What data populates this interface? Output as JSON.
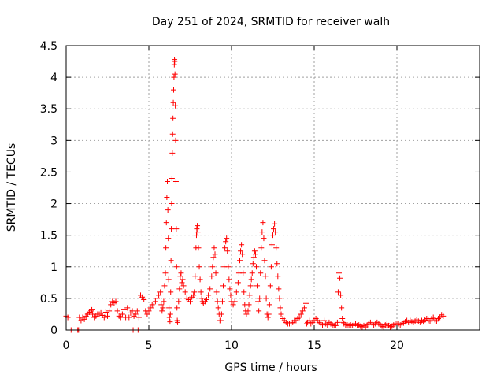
{
  "chart_data": {
    "type": "scatter",
    "title": "Day 251 of 2024, SRMTID for receiver walh",
    "xlabel": "GPS time / hours",
    "ylabel": "SRMTID / TECUs",
    "xlim": [
      0,
      25
    ],
    "ylim": [
      0,
      4.5
    ],
    "x_ticks": [
      0,
      5,
      10,
      15,
      20
    ],
    "x_tick_labels": [
      "0",
      "5",
      "10",
      "15",
      "20"
    ],
    "y_ticks": [
      0,
      0.5,
      1,
      1.5,
      2,
      2.5,
      3,
      3.5,
      4,
      4.5
    ],
    "y_tick_labels": [
      "0",
      "0.5",
      "1",
      "1.5",
      "2",
      "2.5",
      "3",
      "3.5",
      "4",
      "4.5"
    ],
    "grid": true,
    "marker": "+",
    "series": [
      {
        "name": "SRMTID",
        "color": "#ff0000",
        "points": [
          [
            0.0,
            0.22
          ],
          [
            0.1,
            0.2
          ],
          [
            0.3,
            0.0
          ],
          [
            0.7,
            0.0
          ],
          [
            0.75,
            0.0
          ],
          [
            0.8,
            0.2
          ],
          [
            0.9,
            0.15
          ],
          [
            1.0,
            0.2
          ],
          [
            1.1,
            0.17
          ],
          [
            1.2,
            0.22
          ],
          [
            1.3,
            0.25
          ],
          [
            1.4,
            0.28
          ],
          [
            1.5,
            0.3
          ],
          [
            1.55,
            0.32
          ],
          [
            1.6,
            0.25
          ],
          [
            1.7,
            0.2
          ],
          [
            1.8,
            0.22
          ],
          [
            1.9,
            0.25
          ],
          [
            2.0,
            0.25
          ],
          [
            2.1,
            0.27
          ],
          [
            2.2,
            0.23
          ],
          [
            2.3,
            0.2
          ],
          [
            2.4,
            0.28
          ],
          [
            2.5,
            0.22
          ],
          [
            2.6,
            0.3
          ],
          [
            2.7,
            0.4
          ],
          [
            2.8,
            0.45
          ],
          [
            2.9,
            0.43
          ],
          [
            3.0,
            0.45
          ],
          [
            3.1,
            0.3
          ],
          [
            3.2,
            0.22
          ],
          [
            3.3,
            0.2
          ],
          [
            3.4,
            0.25
          ],
          [
            3.5,
            0.32
          ],
          [
            3.6,
            0.2
          ],
          [
            3.7,
            0.35
          ],
          [
            3.8,
            0.2
          ],
          [
            3.9,
            0.27
          ],
          [
            4.0,
            0.3
          ],
          [
            4.05,
            0.0
          ],
          [
            4.1,
            0.22
          ],
          [
            4.2,
            0.25
          ],
          [
            4.3,
            0.3
          ],
          [
            4.35,
            0.0
          ],
          [
            4.4,
            0.2
          ],
          [
            4.5,
            0.55
          ],
          [
            4.6,
            0.52
          ],
          [
            4.7,
            0.48
          ],
          [
            4.8,
            0.3
          ],
          [
            4.9,
            0.25
          ],
          [
            5.0,
            0.3
          ],
          [
            5.1,
            0.35
          ],
          [
            5.2,
            0.4
          ],
          [
            5.3,
            0.38
          ],
          [
            5.4,
            0.45
          ],
          [
            5.5,
            0.5
          ],
          [
            5.6,
            0.55
          ],
          [
            5.7,
            0.6
          ],
          [
            5.75,
            0.4
          ],
          [
            5.8,
            0.3
          ],
          [
            5.85,
            0.35
          ],
          [
            5.9,
            0.45
          ],
          [
            5.95,
            0.7
          ],
          [
            6.0,
            0.9
          ],
          [
            6.03,
            1.3
          ],
          [
            6.06,
            1.7
          ],
          [
            6.09,
            2.1
          ],
          [
            6.12,
            2.35
          ],
          [
            6.15,
            1.9
          ],
          [
            6.18,
            1.45
          ],
          [
            6.2,
            0.8
          ],
          [
            6.22,
            0.35
          ],
          [
            6.25,
            0.2
          ],
          [
            6.28,
            0.13
          ],
          [
            6.3,
            0.25
          ],
          [
            6.32,
            0.6
          ],
          [
            6.34,
            1.1
          ],
          [
            6.36,
            1.6
          ],
          [
            6.38,
            2.0
          ],
          [
            6.4,
            2.4
          ],
          [
            6.42,
            2.8
          ],
          [
            6.44,
            3.1
          ],
          [
            6.46,
            3.35
          ],
          [
            6.48,
            3.6
          ],
          [
            6.5,
            3.8
          ],
          [
            6.52,
            4.0
          ],
          [
            6.54,
            4.2
          ],
          [
            6.55,
            4.28
          ],
          [
            6.56,
            4.25
          ],
          [
            6.58,
            4.05
          ],
          [
            6.6,
            3.55
          ],
          [
            6.62,
            3.0
          ],
          [
            6.64,
            2.35
          ],
          [
            6.66,
            1.6
          ],
          [
            6.68,
            1.0
          ],
          [
            6.7,
            0.35
          ],
          [
            6.72,
            0.15
          ],
          [
            6.74,
            0.12
          ],
          [
            6.8,
            0.45
          ],
          [
            6.85,
            0.65
          ],
          [
            6.9,
            0.85
          ],
          [
            6.95,
            0.9
          ],
          [
            7.0,
            0.75
          ],
          [
            7.05,
            0.8
          ],
          [
            7.1,
            0.7
          ],
          [
            7.2,
            0.6
          ],
          [
            7.3,
            0.5
          ],
          [
            7.4,
            0.48
          ],
          [
            7.5,
            0.45
          ],
          [
            7.6,
            0.52
          ],
          [
            7.7,
            0.55
          ],
          [
            7.75,
            0.6
          ],
          [
            7.8,
            0.85
          ],
          [
            7.85,
            1.3
          ],
          [
            7.88,
            1.5
          ],
          [
            7.9,
            1.6
          ],
          [
            7.93,
            1.65
          ],
          [
            7.96,
            1.55
          ],
          [
            8.0,
            1.3
          ],
          [
            8.05,
            1.0
          ],
          [
            8.1,
            0.8
          ],
          [
            8.15,
            0.6
          ],
          [
            8.2,
            0.5
          ],
          [
            8.25,
            0.45
          ],
          [
            8.3,
            0.42
          ],
          [
            8.4,
            0.45
          ],
          [
            8.5,
            0.48
          ],
          [
            8.6,
            0.55
          ],
          [
            8.7,
            0.65
          ],
          [
            8.8,
            0.85
          ],
          [
            8.85,
            1.0
          ],
          [
            8.9,
            1.15
          ],
          [
            8.95,
            1.3
          ],
          [
            9.0,
            1.2
          ],
          [
            9.05,
            0.9
          ],
          [
            9.1,
            0.6
          ],
          [
            9.15,
            0.45
          ],
          [
            9.2,
            0.35
          ],
          [
            9.25,
            0.25
          ],
          [
            9.3,
            0.15
          ],
          [
            9.35,
            0.15
          ],
          [
            9.4,
            0.25
          ],
          [
            9.45,
            0.45
          ],
          [
            9.5,
            0.7
          ],
          [
            9.55,
            1.0
          ],
          [
            9.6,
            1.3
          ],
          [
            9.65,
            1.4
          ],
          [
            9.7,
            1.45
          ],
          [
            9.75,
            1.25
          ],
          [
            9.8,
            1.0
          ],
          [
            9.85,
            0.8
          ],
          [
            9.9,
            0.65
          ],
          [
            9.95,
            0.55
          ],
          [
            10.0,
            0.45
          ],
          [
            10.1,
            0.4
          ],
          [
            10.2,
            0.45
          ],
          [
            10.3,
            0.6
          ],
          [
            10.4,
            0.75
          ],
          [
            10.45,
            0.9
          ],
          [
            10.5,
            1.1
          ],
          [
            10.55,
            1.25
          ],
          [
            10.6,
            1.35
          ],
          [
            10.65,
            1.2
          ],
          [
            10.7,
            0.9
          ],
          [
            10.75,
            0.6
          ],
          [
            10.8,
            0.4
          ],
          [
            10.85,
            0.3
          ],
          [
            10.9,
            0.25
          ],
          [
            11.0,
            0.3
          ],
          [
            11.05,
            0.4
          ],
          [
            11.1,
            0.55
          ],
          [
            11.15,
            0.7
          ],
          [
            11.2,
            0.8
          ],
          [
            11.25,
            0.9
          ],
          [
            11.3,
            1.05
          ],
          [
            11.35,
            1.15
          ],
          [
            11.4,
            1.25
          ],
          [
            11.45,
            1.2
          ],
          [
            11.5,
            1.0
          ],
          [
            11.55,
            0.7
          ],
          [
            11.6,
            0.45
          ],
          [
            11.65,
            0.3
          ],
          [
            11.7,
            0.5
          ],
          [
            11.75,
            0.9
          ],
          [
            11.8,
            1.3
          ],
          [
            11.85,
            1.55
          ],
          [
            11.9,
            1.7
          ],
          [
            11.95,
            1.45
          ],
          [
            12.0,
            1.1
          ],
          [
            12.05,
            0.85
          ],
          [
            12.1,
            0.5
          ],
          [
            12.15,
            0.25
          ],
          [
            12.2,
            0.2
          ],
          [
            12.25,
            0.25
          ],
          [
            12.3,
            0.4
          ],
          [
            12.35,
            0.7
          ],
          [
            12.4,
            1.0
          ],
          [
            12.45,
            1.35
          ],
          [
            12.5,
            1.5
          ],
          [
            12.55,
            1.6
          ],
          [
            12.6,
            1.68
          ],
          [
            12.65,
            1.55
          ],
          [
            12.7,
            1.3
          ],
          [
            12.75,
            1.05
          ],
          [
            12.8,
            0.85
          ],
          [
            12.85,
            0.65
          ],
          [
            12.9,
            0.5
          ],
          [
            12.95,
            0.35
          ],
          [
            13.0,
            0.25
          ],
          [
            13.1,
            0.18
          ],
          [
            13.2,
            0.15
          ],
          [
            13.3,
            0.12
          ],
          [
            13.4,
            0.1
          ],
          [
            13.5,
            0.1
          ],
          [
            13.6,
            0.1
          ],
          [
            13.7,
            0.12
          ],
          [
            13.8,
            0.15
          ],
          [
            13.9,
            0.15
          ],
          [
            14.0,
            0.18
          ],
          [
            14.1,
            0.2
          ],
          [
            14.2,
            0.25
          ],
          [
            14.3,
            0.3
          ],
          [
            14.4,
            0.35
          ],
          [
            14.5,
            0.42
          ],
          [
            14.55,
            0.1
          ],
          [
            14.6,
            0.12
          ],
          [
            14.7,
            0.15
          ],
          [
            14.8,
            0.1
          ],
          [
            14.9,
            0.12
          ],
          [
            15.0,
            0.15
          ],
          [
            15.1,
            0.18
          ],
          [
            15.2,
            0.15
          ],
          [
            15.3,
            0.12
          ],
          [
            15.4,
            0.1
          ],
          [
            15.5,
            0.08
          ],
          [
            15.6,
            0.15
          ],
          [
            15.7,
            0.1
          ],
          [
            15.8,
            0.08
          ],
          [
            15.9,
            0.12
          ],
          [
            16.0,
            0.1
          ],
          [
            16.1,
            0.08
          ],
          [
            16.2,
            0.07
          ],
          [
            16.3,
            0.07
          ],
          [
            16.4,
            0.12
          ],
          [
            16.45,
            0.6
          ],
          [
            16.5,
            0.9
          ],
          [
            16.55,
            0.82
          ],
          [
            16.6,
            0.55
          ],
          [
            16.65,
            0.35
          ],
          [
            16.7,
            0.18
          ],
          [
            16.75,
            0.12
          ],
          [
            16.8,
            0.1
          ],
          [
            16.9,
            0.08
          ],
          [
            17.0,
            0.08
          ],
          [
            17.1,
            0.07
          ],
          [
            17.2,
            0.08
          ],
          [
            17.3,
            0.07
          ],
          [
            17.4,
            0.08
          ],
          [
            17.5,
            0.1
          ],
          [
            17.6,
            0.07
          ],
          [
            17.7,
            0.08
          ],
          [
            17.8,
            0.06
          ],
          [
            17.9,
            0.05
          ],
          [
            18.0,
            0.07
          ],
          [
            18.1,
            0.05
          ],
          [
            18.2,
            0.08
          ],
          [
            18.3,
            0.1
          ],
          [
            18.4,
            0.12
          ],
          [
            18.5,
            0.1
          ],
          [
            18.6,
            0.08
          ],
          [
            18.7,
            0.1
          ],
          [
            18.8,
            0.12
          ],
          [
            18.9,
            0.1
          ],
          [
            19.0,
            0.08
          ],
          [
            19.1,
            0.06
          ],
          [
            19.2,
            0.05
          ],
          [
            19.3,
            0.08
          ],
          [
            19.4,
            0.1
          ],
          [
            19.5,
            0.07
          ],
          [
            19.6,
            0.05
          ],
          [
            19.7,
            0.06
          ],
          [
            19.8,
            0.08
          ],
          [
            19.9,
            0.1
          ],
          [
            20.0,
            0.09
          ],
          [
            20.1,
            0.1
          ],
          [
            20.2,
            0.08
          ],
          [
            20.3,
            0.1
          ],
          [
            20.4,
            0.11
          ],
          [
            20.5,
            0.13
          ],
          [
            20.6,
            0.15
          ],
          [
            20.7,
            0.12
          ],
          [
            20.8,
            0.15
          ],
          [
            20.9,
            0.13
          ],
          [
            21.0,
            0.12
          ],
          [
            21.1,
            0.14
          ],
          [
            21.2,
            0.16
          ],
          [
            21.3,
            0.14
          ],
          [
            21.4,
            0.12
          ],
          [
            21.5,
            0.15
          ],
          [
            21.6,
            0.13
          ],
          [
            21.7,
            0.16
          ],
          [
            21.8,
            0.18
          ],
          [
            21.9,
            0.15
          ],
          [
            22.0,
            0.14
          ],
          [
            22.1,
            0.18
          ],
          [
            22.2,
            0.2
          ],
          [
            22.3,
            0.16
          ],
          [
            22.4,
            0.14
          ],
          [
            22.5,
            0.18
          ],
          [
            22.6,
            0.2
          ],
          [
            22.7,
            0.24
          ],
          [
            22.8,
            0.22
          ]
        ]
      }
    ]
  }
}
